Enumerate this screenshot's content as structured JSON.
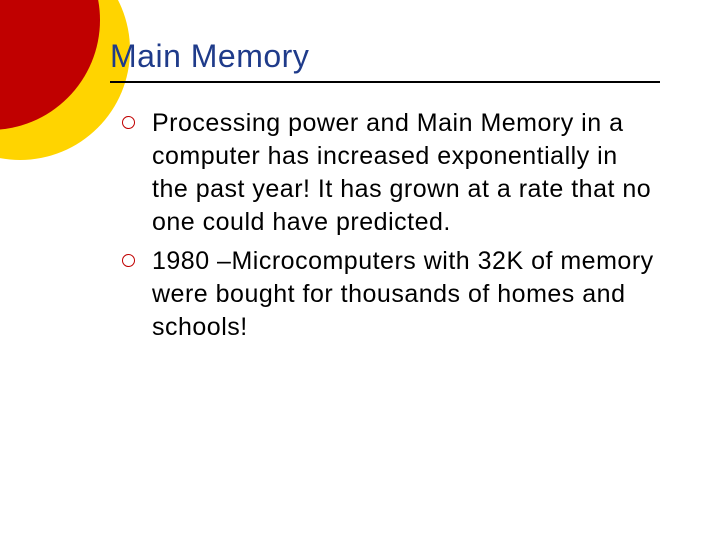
{
  "slide": {
    "title": "Main Memory",
    "title_color": "#1f3b8a",
    "title_fontsize": 32,
    "rule_color": "#000000",
    "body_fontsize": 25,
    "body_color": "#000000",
    "bullets": [
      {
        "text": "Processing power and Main Memory in a computer has increased exponentially in the past year! It has grown at a rate that no one could have predicted."
      },
      {
        "text": "1980 –Microcomputers with 32K of memory were bought for thousands of homes and schools!"
      }
    ],
    "bullet_marker_color": "#c00000"
  },
  "decor": {
    "yellow": "#ffd400",
    "red": "#c00000"
  },
  "background_color": "#ffffff"
}
